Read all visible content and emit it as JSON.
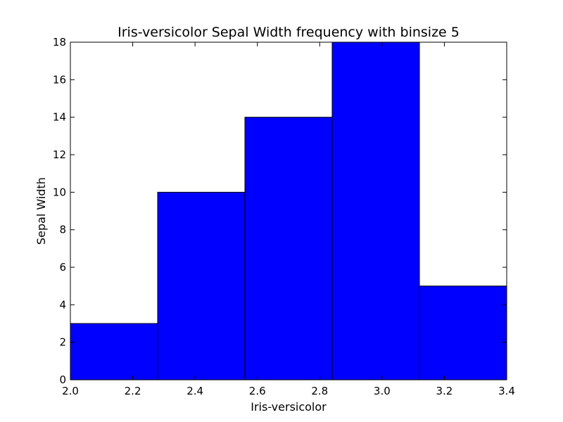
{
  "chart_data": {
    "type": "bar",
    "title": "Iris-versicolor Sepal Width frequency with binsize 5",
    "xlabel": "Iris-versicolor",
    "ylabel": "Sepal Width",
    "xlim": [
      2.0,
      3.4
    ],
    "ylim": [
      0,
      18
    ],
    "xticks": [
      "2.0",
      "2.2",
      "2.4",
      "2.6",
      "2.8",
      "3.0",
      "3.2",
      "3.4"
    ],
    "yticks": [
      "0",
      "2",
      "4",
      "6",
      "8",
      "10",
      "12",
      "14",
      "16",
      "18"
    ],
    "bin_edges": [
      2.0,
      2.28,
      2.56,
      2.84,
      3.12,
      3.4
    ],
    "values": [
      3,
      10,
      14,
      18,
      5
    ],
    "bar_color": "#0000ff",
    "edge_color": "#000000",
    "grid": false,
    "legend": "none"
  }
}
